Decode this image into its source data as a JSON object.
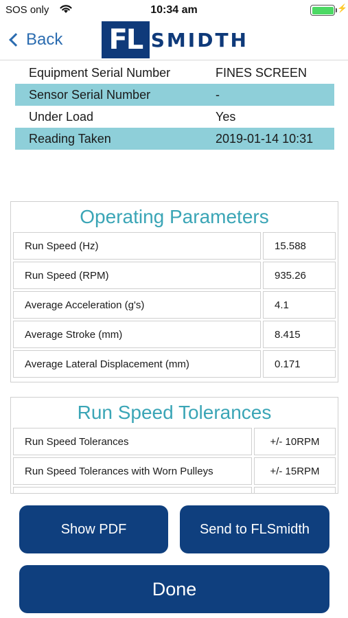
{
  "status_bar": {
    "carrier": "SOS only",
    "time": "10:34 am",
    "charging_symbol": "⚡"
  },
  "nav": {
    "back_label": "Back",
    "logo_box": "FL",
    "logo_text": "SMIDTH"
  },
  "info": [
    {
      "label": "Equipment Serial Number",
      "value": "FINES SCREEN"
    },
    {
      "label": "Sensor Serial Number",
      "value": "-"
    },
    {
      "label": "Under Load",
      "value": "Yes"
    },
    {
      "label": "Reading Taken",
      "value": "2019-01-14 10:31"
    }
  ],
  "operating_parameters": {
    "title": "Operating Parameters",
    "rows": [
      {
        "label": "Run Speed (Hz)",
        "value": "15.588"
      },
      {
        "label": "Run Speed (RPM)",
        "value": "935.26"
      },
      {
        "label": "Average Acceleration (g's)",
        "value": "4.1"
      },
      {
        "label": "Average Stroke (mm)",
        "value": "8.415"
      },
      {
        "label": "Average Lateral Displacement (mm)",
        "value": "0.171"
      }
    ]
  },
  "run_speed_tolerances": {
    "title": "Run Speed Tolerances",
    "rows": [
      {
        "label": "Run Speed Tolerances",
        "value": "+/- 10RPM"
      },
      {
        "label": "Run Speed Tolerances with Worn Pulleys",
        "value": "+/- 15RPM"
      }
    ]
  },
  "buttons": {
    "show_pdf": "Show PDF",
    "send": "Send to FLSmidth",
    "done": "Done"
  },
  "colors": {
    "brand_blue": "#0f3f7e",
    "accent_teal": "#3aa5b6",
    "row_shade": "#8ecfd9",
    "link_blue": "#2b6cb0",
    "battery_green": "#4cd964"
  }
}
